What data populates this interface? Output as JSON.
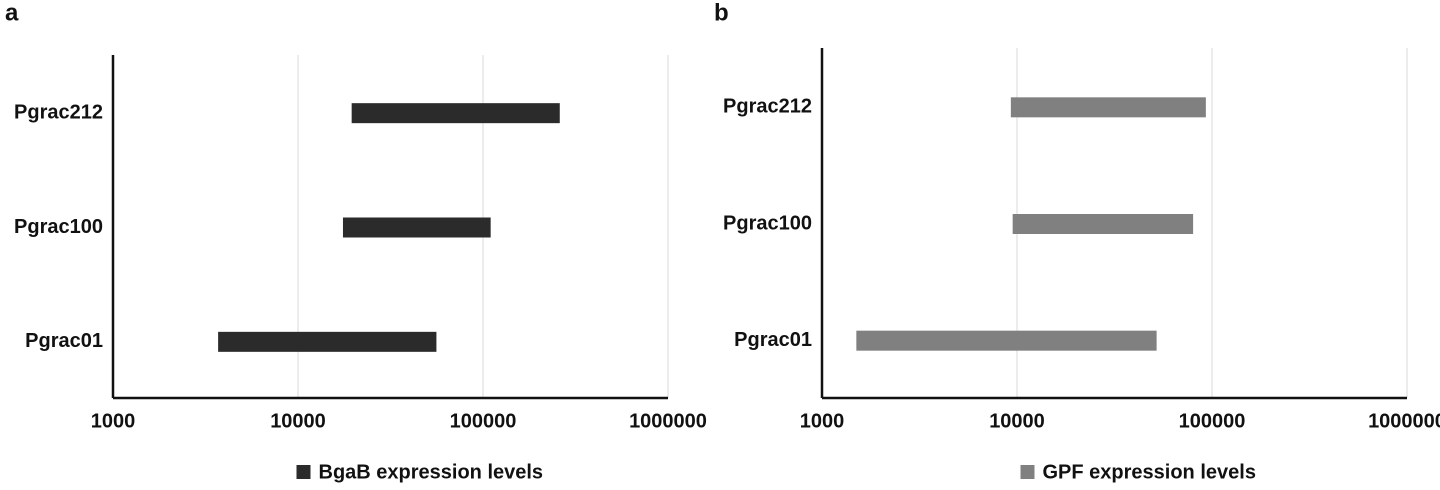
{
  "chart_data": [
    {
      "type": "floating_bar",
      "panel_label": "a",
      "orientation": "horizontal",
      "categories": [
        "Pgrac01",
        "Pgrac100",
        "Pgrac212"
      ],
      "series": [
        {
          "name": "BgaB expression levels",
          "color": "#2b2b2b",
          "low": [
            3700,
            17500,
            19500
          ],
          "high": [
            56000,
            110000,
            260000
          ]
        }
      ],
      "xlim": [
        1000,
        1000000
      ],
      "xticks": [
        1000,
        10000,
        100000,
        1000000
      ],
      "log_x": true,
      "grid": true,
      "legend": "bottom"
    },
    {
      "type": "floating_bar",
      "panel_label": "b",
      "orientation": "horizontal",
      "categories": [
        "Pgrac01",
        "Pgrac100",
        "Pgrac212"
      ],
      "series": [
        {
          "name": "GPF expression levels",
          "color": "#808080",
          "low": [
            1500,
            9500,
            9300
          ],
          "high": [
            52000,
            80000,
            93000
          ]
        }
      ],
      "xlim": [
        1000,
        1000000
      ],
      "xticks": [
        1000,
        10000,
        100000,
        1000000
      ],
      "log_x": true,
      "grid": true,
      "legend": "bottom"
    }
  ]
}
